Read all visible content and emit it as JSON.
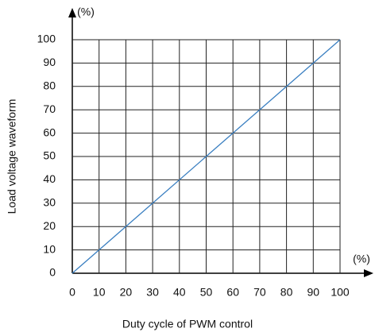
{
  "chart_data": {
    "type": "line",
    "x_label": "Duty cycle of PWM control",
    "y_label": "Load voltage waveform",
    "x_unit": "(%)",
    "y_unit": "(%)",
    "x": [
      0,
      100
    ],
    "series": [
      {
        "color": "#3a7fc1",
        "values": [
          0,
          100
        ]
      }
    ],
    "xlim": [
      0,
      100
    ],
    "ylim": [
      0,
      100
    ],
    "xticks": [
      0,
      10,
      20,
      30,
      40,
      50,
      60,
      70,
      80,
      90,
      100
    ],
    "yticks": [
      0,
      10,
      20,
      30,
      40,
      50,
      60,
      70,
      80,
      90,
      100
    ],
    "grid": true
  }
}
